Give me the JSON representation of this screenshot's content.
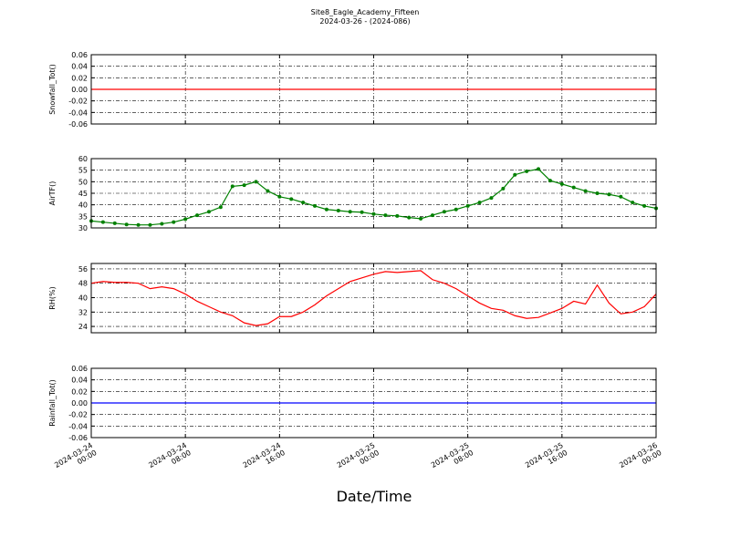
{
  "chart_data": [
    {
      "type": "line",
      "title": "Site8_Eagle_Academy_Fifteen",
      "subtitle": "2024-03-26 - (2024-086)",
      "ylabel": "Snowfall_Tot()",
      "color": "#ff0000",
      "x": [
        "2024-03-24 00:00",
        "2024-03-26 00:00"
      ],
      "values": [
        0,
        0
      ],
      "xlim": [
        "2024-03-24 00:00",
        "2024-03-26 00:00"
      ],
      "xticks": [
        "2024-03-24 00:00",
        "2024-03-24 08:00",
        "2024-03-24 16:00",
        "2024-03-25 00:00",
        "2024-03-25 08:00",
        "2024-03-25 16:00",
        "2024-03-26 00:00"
      ],
      "ylim": [
        -0.06,
        0.06
      ],
      "yticks": [
        -0.06,
        -0.04,
        -0.02,
        {
          "value": 0,
          "label": "0.00"
        },
        0.02,
        0.04,
        0.06
      ],
      "grid": true
    },
    {
      "type": "line",
      "ylabel": "AirTF()",
      "color": "#008000",
      "markers": true,
      "x": [
        "2024-03-24 00:00",
        "2024-03-24 01:00",
        "2024-03-24 02:00",
        "2024-03-24 03:00",
        "2024-03-24 04:00",
        "2024-03-24 05:00",
        "2024-03-24 06:00",
        "2024-03-24 07:00",
        "2024-03-24 08:00",
        "2024-03-24 09:00",
        "2024-03-24 10:00",
        "2024-03-24 11:00",
        "2024-03-24 12:00",
        "2024-03-24 13:00",
        "2024-03-24 14:00",
        "2024-03-24 15:00",
        "2024-03-24 16:00",
        "2024-03-24 17:00",
        "2024-03-24 18:00",
        "2024-03-24 19:00",
        "2024-03-24 20:00",
        "2024-03-24 21:00",
        "2024-03-24 22:00",
        "2024-03-24 23:00",
        "2024-03-25 00:00",
        "2024-03-25 01:00",
        "2024-03-25 02:00",
        "2024-03-25 03:00",
        "2024-03-25 04:00",
        "2024-03-25 05:00",
        "2024-03-25 06:00",
        "2024-03-25 07:00",
        "2024-03-25 08:00",
        "2024-03-25 09:00",
        "2024-03-25 10:00",
        "2024-03-25 11:00",
        "2024-03-25 12:00",
        "2024-03-25 13:00",
        "2024-03-25 14:00",
        "2024-03-25 15:00",
        "2024-03-25 16:00",
        "2024-03-25 17:00",
        "2024-03-25 18:00",
        "2024-03-25 19:00",
        "2024-03-25 20:00",
        "2024-03-25 21:00",
        "2024-03-25 22:00",
        "2024-03-25 23:00",
        "2024-03-26 00:00"
      ],
      "values": [
        33,
        32.5,
        32,
        31.5,
        31.3,
        31.3,
        31.8,
        32.5,
        33.8,
        35.5,
        37,
        39,
        48,
        48.5,
        50,
        46,
        43.5,
        42.5,
        41,
        39.5,
        38,
        37.5,
        37,
        36.8,
        36,
        35.5,
        35.2,
        34.5,
        34,
        35.5,
        37,
        38,
        39.5,
        41,
        43,
        47,
        53,
        54.5,
        55.5,
        50.5,
        49,
        47.5,
        46,
        45,
        44.5,
        43.5,
        41,
        39.5,
        38.5
      ],
      "xlim": [
        "2024-03-24 00:00",
        "2024-03-26 00:00"
      ],
      "xticks": [
        "2024-03-24 00:00",
        "2024-03-24 08:00",
        "2024-03-24 16:00",
        "2024-03-25 00:00",
        "2024-03-25 08:00",
        "2024-03-25 16:00",
        "2024-03-26 00:00"
      ],
      "ylim": [
        30,
        60
      ],
      "yticks": [
        30,
        35,
        40,
        45,
        50,
        55,
        60
      ],
      "grid": true
    },
    {
      "type": "line",
      "ylabel": "RH(%)",
      "color": "#ff0000",
      "x": [
        "2024-03-24 00:00",
        "2024-03-24 01:00",
        "2024-03-24 02:00",
        "2024-03-24 03:00",
        "2024-03-24 04:00",
        "2024-03-24 05:00",
        "2024-03-24 06:00",
        "2024-03-24 07:00",
        "2024-03-24 08:00",
        "2024-03-24 09:00",
        "2024-03-24 10:00",
        "2024-03-24 11:00",
        "2024-03-24 12:00",
        "2024-03-24 13:00",
        "2024-03-24 14:00",
        "2024-03-24 15:00",
        "2024-03-24 16:00",
        "2024-03-24 17:00",
        "2024-03-24 18:00",
        "2024-03-24 19:00",
        "2024-03-24 20:00",
        "2024-03-24 21:00",
        "2024-03-24 22:00",
        "2024-03-24 23:00",
        "2024-03-25 00:00",
        "2024-03-25 01:00",
        "2024-03-25 02:00",
        "2024-03-25 03:00",
        "2024-03-25 04:00",
        "2024-03-25 05:00",
        "2024-03-25 06:00",
        "2024-03-25 07:00",
        "2024-03-25 08:00",
        "2024-03-25 09:00",
        "2024-03-25 10:00",
        "2024-03-25 11:00",
        "2024-03-25 12:00",
        "2024-03-25 13:00",
        "2024-03-25 14:00",
        "2024-03-25 15:00",
        "2024-03-25 16:00",
        "2024-03-25 17:00",
        "2024-03-25 18:00",
        "2024-03-25 19:00",
        "2024-03-25 20:00",
        "2024-03-25 21:00",
        "2024-03-25 22:00",
        "2024-03-25 23:00",
        "2024-03-26 00:00"
      ],
      "values": [
        48,
        49,
        48.5,
        48.5,
        48,
        45,
        46,
        45,
        42,
        38,
        35,
        32,
        30,
        26,
        24.5,
        25.5,
        29.5,
        29.5,
        32,
        36,
        41,
        45,
        49,
        51,
        53,
        54.5,
        54,
        54.5,
        55,
        50,
        48,
        45,
        41,
        37,
        34,
        33,
        30,
        28.5,
        29,
        31.5,
        34,
        38,
        36.5,
        47,
        37,
        31,
        32,
        35,
        42
      ],
      "xlim": [
        "2024-03-24 00:00",
        "2024-03-26 00:00"
      ],
      "xticks": [
        "2024-03-24 00:00",
        "2024-03-24 08:00",
        "2024-03-24 16:00",
        "2024-03-25 00:00",
        "2024-03-25 08:00",
        "2024-03-25 16:00",
        "2024-03-26 00:00"
      ],
      "ylim": [
        20.5,
        59
      ],
      "yticks": [
        24,
        32,
        40,
        48,
        56
      ],
      "grid": true
    },
    {
      "type": "line",
      "ylabel": "Rainfall_Tot()",
      "xlabel": "Date/Time",
      "color": "#0000ff",
      "x": [
        "2024-03-24 00:00",
        "2024-03-26 00:00"
      ],
      "values": [
        0,
        0
      ],
      "xlim": [
        "2024-03-24 00:00",
        "2024-03-26 00:00"
      ],
      "xticks": [
        "2024-03-24 00:00",
        "2024-03-24 08:00",
        "2024-03-24 16:00",
        "2024-03-25 00:00",
        "2024-03-25 08:00",
        "2024-03-25 16:00",
        "2024-03-26 00:00"
      ],
      "ylim": [
        -0.06,
        0.06
      ],
      "yticks": [
        -0.06,
        -0.04,
        -0.02,
        {
          "value": 0,
          "label": "0.00"
        },
        0.02,
        0.04,
        0.06
      ],
      "grid": true
    }
  ]
}
